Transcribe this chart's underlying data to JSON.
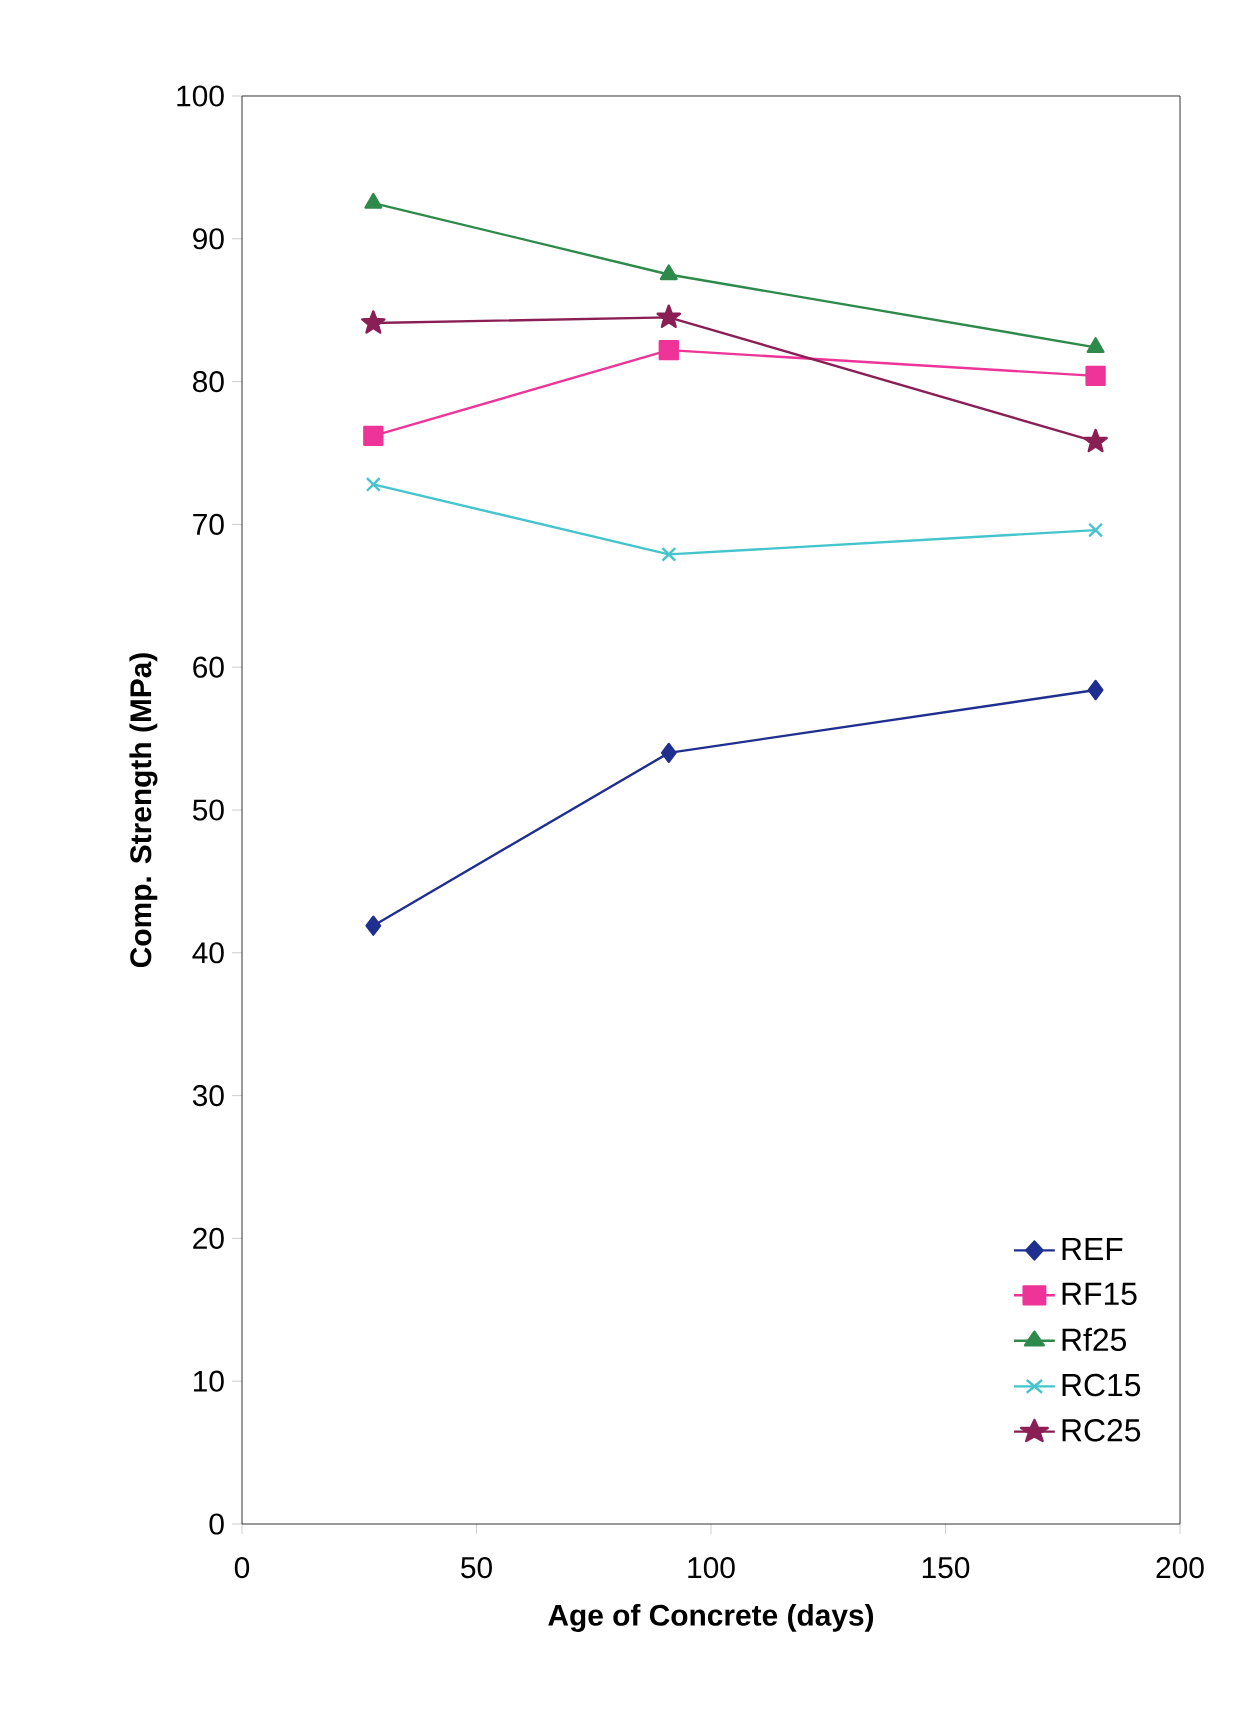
{
  "chart_data": {
    "type": "line",
    "xlabel": "Age of Concrete (days)",
    "ylabel": "Comp. Strength (MPa)",
    "x": [
      28,
      91,
      182
    ],
    "series": [
      {
        "name": "REF",
        "color": "#1f2f8f",
        "marker": "diamond",
        "values": [
          41.9,
          54.0,
          58.4
        ]
      },
      {
        "name": "RF15",
        "color": "#ee3399",
        "marker": "square",
        "values": [
          76.2,
          82.2,
          80.4
        ]
      },
      {
        "name": "Rf25",
        "color": "#2e8a4a",
        "marker": "triangle",
        "values": [
          92.5,
          87.5,
          82.4
        ]
      },
      {
        "name": "RC15",
        "color": "#44c4cc",
        "marker": "cross",
        "values": [
          72.8,
          67.9,
          69.6
        ]
      },
      {
        "name": "RC25",
        "color": "#8a1f55",
        "marker": "star",
        "values": [
          84.1,
          84.5,
          75.8
        ]
      }
    ],
    "xlim": [
      0,
      200
    ],
    "xticks": [
      0,
      50,
      100,
      150,
      200
    ],
    "ylim": [
      0,
      100
    ],
    "yticks": [
      0,
      10,
      20,
      30,
      40,
      50,
      60,
      70,
      80,
      90,
      100
    ],
    "grid": false,
    "legend": "bottom right",
    "line_style": "solid"
  }
}
